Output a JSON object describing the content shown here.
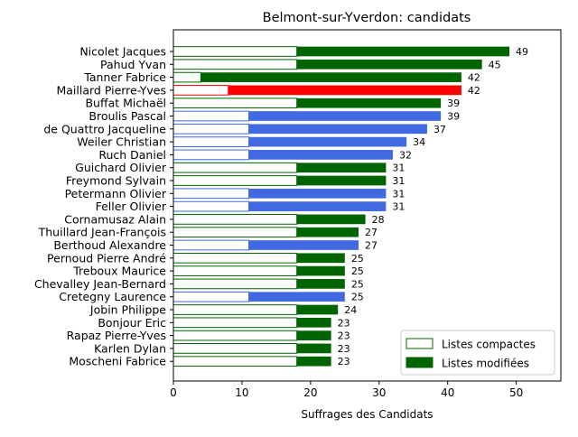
{
  "chart_data": {
    "type": "bar",
    "orientation": "horizontal",
    "stacked": true,
    "title": "Belmont-sur-Yverdon: candidats",
    "xlabel": "Suffrages des Candidats",
    "ylabel": "",
    "xlim": [
      0,
      56.5
    ],
    "x_ticks": [
      0,
      10,
      20,
      30,
      40,
      50
    ],
    "grid": false,
    "legend_position": "bottom-right",
    "categories": [
      "Nicolet Jacques",
      "Pahud Yvan",
      "Tanner Fabrice",
      "Maillard Pierre-Yves",
      "Buffat Michaël",
      "Broulis Pascal",
      "de Quattro Jacqueline",
      "Weiler Christian",
      "Ruch Daniel",
      "Guichard Olivier",
      "Freymond Sylvain",
      "Petermann Olivier",
      "Feller Olivier",
      "Cornamusaz Alain",
      "Thuillard Jean-François",
      "Berthoud Alexandre",
      "Pernoud Pierre André",
      "Treboux Maurice",
      "Chevalley Jean-Bernard",
      "Cretegny Laurence",
      "Jobin Philippe",
      "Bonjour Eric",
      "Rapaz Pierre-Yves",
      "Karlen Dylan",
      "Moscheni Fabrice"
    ],
    "totals": [
      49,
      45,
      42,
      42,
      39,
      39,
      37,
      34,
      32,
      31,
      31,
      31,
      31,
      28,
      27,
      27,
      25,
      25,
      25,
      25,
      24,
      23,
      23,
      23,
      23
    ],
    "series": [
      {
        "name": "Listes compactes",
        "values": [
          18,
          18,
          4,
          8,
          18,
          11,
          11,
          11,
          11,
          18,
          18,
          11,
          11,
          18,
          18,
          11,
          18,
          18,
          18,
          11,
          18,
          18,
          18,
          18,
          18
        ]
      },
      {
        "name": "Listes modifiées",
        "values": [
          31,
          27,
          38,
          34,
          21,
          28,
          26,
          23,
          21,
          13,
          13,
          20,
          20,
          10,
          9,
          16,
          7,
          7,
          7,
          14,
          6,
          5,
          5,
          5,
          5
        ]
      }
    ],
    "bar_colors": [
      "#006400",
      "#006400",
      "#006400",
      "#ff0000",
      "#006400",
      "#4169e1",
      "#4169e1",
      "#4169e1",
      "#4169e1",
      "#006400",
      "#006400",
      "#4169e1",
      "#4169e1",
      "#006400",
      "#006400",
      "#4169e1",
      "#006400",
      "#006400",
      "#006400",
      "#4169e1",
      "#006400",
      "#006400",
      "#006400",
      "#006400",
      "#006400"
    ],
    "legend_color": "#006400"
  }
}
